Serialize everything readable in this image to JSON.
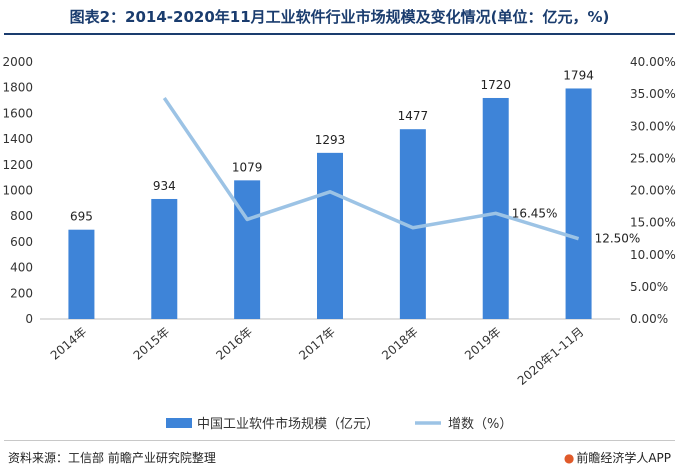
{
  "chart_data": {
    "type": "bar+line",
    "title": "图表2：2014-2020年11月工业软件行业市场规模及变化情况(单位：亿元，%)",
    "categories": [
      "2014年",
      "2015年",
      "2016年",
      "2017年",
      "2018年",
      "2019年",
      "2020年1-11月"
    ],
    "series": [
      {
        "name": "中国工业软件市场规模（亿元）",
        "type": "bar",
        "axis": "left",
        "color": "#3e84d8",
        "values": [
          695,
          934,
          1079,
          1293,
          1477,
          1720,
          1794
        ],
        "labels": [
          "695",
          "934",
          "1079",
          "1293",
          "1477",
          "1720",
          "1794"
        ]
      },
      {
        "name": "增数（%）",
        "type": "line",
        "axis": "right",
        "color": "#9cc3e5",
        "values": [
          null,
          34.4,
          15.5,
          19.8,
          14.2,
          16.45,
          12.5
        ],
        "labels": {
          "5": "16.45%",
          "6": "12.50%"
        }
      }
    ],
    "y_left": {
      "min": 0,
      "max": 2000,
      "step": 200,
      "ticks": [
        "0",
        "200",
        "400",
        "600",
        "800",
        "1000",
        "1200",
        "1400",
        "1600",
        "1800",
        "2000"
      ]
    },
    "y_right": {
      "min": 0,
      "max": 40,
      "step": 5,
      "ticks": [
        "0.00%",
        "5.00%",
        "10.00%",
        "15.00%",
        "20.00%",
        "25.00%",
        "30.00%",
        "35.00%",
        "40.00%"
      ]
    },
    "grid": false,
    "legend_position": "bottom-center"
  },
  "footer": {
    "source": "资料来源：工信部 前瞻产业研究院整理",
    "brand": "前瞻经济学人APP",
    "brand_icon": "qianzhan-logo-icon"
  }
}
